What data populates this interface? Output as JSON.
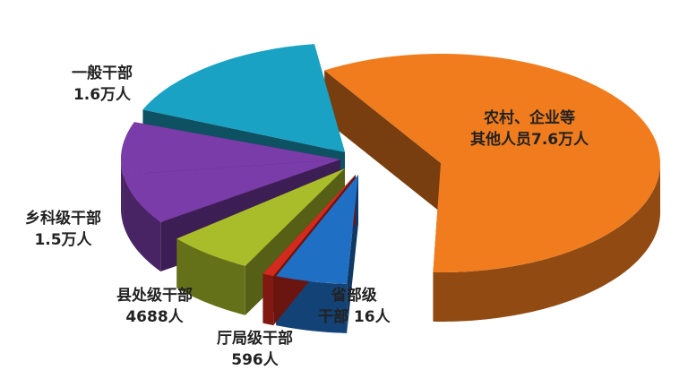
{
  "chart_data": {
    "type": "pie",
    "style": "3d-exploded",
    "title": "",
    "unit": "人",
    "slices": [
      {
        "name": "农村、企业等其他人员",
        "value": 76000,
        "label_line1": "农村、企业等",
        "label_line2": "其他人员7.6万人",
        "color": "#F07C1E"
      },
      {
        "name": "省部级干部",
        "value": 16,
        "label_line1": "省部级",
        "label_line2": "干部 16人",
        "color": "#1F6FC5"
      },
      {
        "name": "省部级干部-edge",
        "value": 0,
        "label_line1": "",
        "label_line2": "",
        "color": "#D42A1E"
      },
      {
        "name": "厅局级干部",
        "value": 596,
        "label_line1": "厅局级干部",
        "label_line2": "596人",
        "color": "#A9BD2A"
      },
      {
        "name": "县处级干部",
        "value": 4688,
        "label_line1": "县处级干部",
        "label_line2": "4688人",
        "color": "#7A3CA8"
      },
      {
        "name": "乡科级干部",
        "value": 15000,
        "label_line1": "乡科级干部",
        "label_line2": "1.5万人",
        "color": "#7A3CA8"
      },
      {
        "name": "一般干部",
        "value": 16000,
        "label_line1": "一般干部",
        "label_line2": "1.6万人",
        "color": "#1AA2C4"
      }
    ],
    "legend": "none"
  }
}
